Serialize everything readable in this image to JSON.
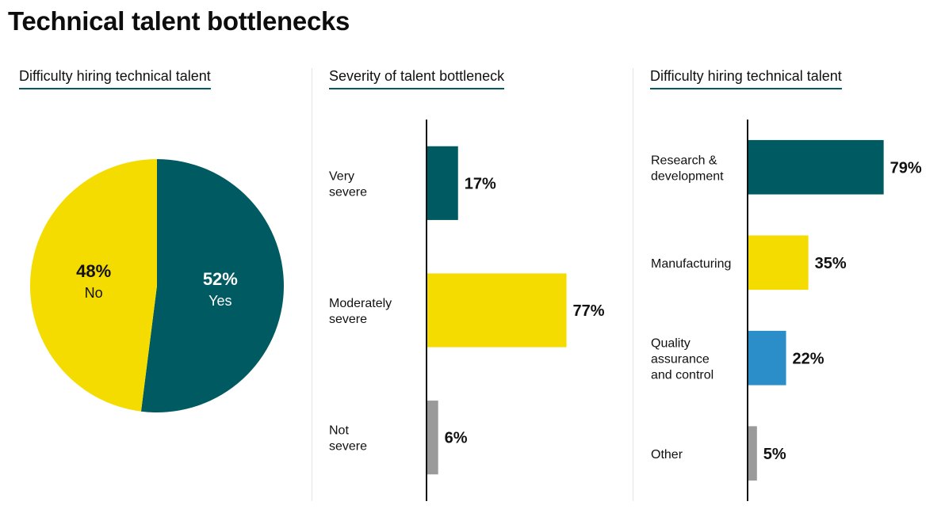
{
  "title": "Technical talent bottlenecks",
  "colors": {
    "teal": "#005a62",
    "yellow": "#f5dc00",
    "blue": "#2b8ec8",
    "gray": "#9a9a9a",
    "axis": "#111111",
    "rule": "#005a62"
  },
  "chart_data": [
    {
      "type": "pie",
      "title": "Difficulty hiring technical talent",
      "slices": [
        {
          "label": "Yes",
          "value": 52,
          "display": "52%",
          "color": "#005a62",
          "text_color": "#ffffff"
        },
        {
          "label": "No",
          "value": 48,
          "display": "48%",
          "color": "#f5dc00",
          "text_color": "#111111"
        }
      ]
    },
    {
      "type": "bar",
      "orientation": "horizontal",
      "title": "Severity of talent bottleneck",
      "xlim": [
        0,
        100
      ],
      "categories": [
        {
          "lines": [
            "Very",
            "severe"
          ],
          "value": 17,
          "display": "17%",
          "color": "#005a62"
        },
        {
          "lines": [
            "Moderately",
            "severe"
          ],
          "value": 77,
          "display": "77%",
          "color": "#f5dc00"
        },
        {
          "lines": [
            "Not",
            "severe"
          ],
          "value": 6,
          "display": "6%",
          "color": "#9a9a9a"
        }
      ]
    },
    {
      "type": "bar",
      "orientation": "horizontal",
      "title": "Difficulty hiring technical talent",
      "xlim": [
        0,
        100
      ],
      "categories": [
        {
          "lines": [
            "Research &",
            "development"
          ],
          "value": 79,
          "display": "79%",
          "color": "#005a62"
        },
        {
          "lines": [
            "Manufacturing"
          ],
          "value": 35,
          "display": "35%",
          "color": "#f5dc00"
        },
        {
          "lines": [
            "Quality",
            "assurance",
            "and control"
          ],
          "value": 22,
          "display": "22%",
          "color": "#2b8ec8"
        },
        {
          "lines": [
            "Other"
          ],
          "value": 5,
          "display": "5%",
          "color": "#9a9a9a"
        }
      ]
    }
  ]
}
